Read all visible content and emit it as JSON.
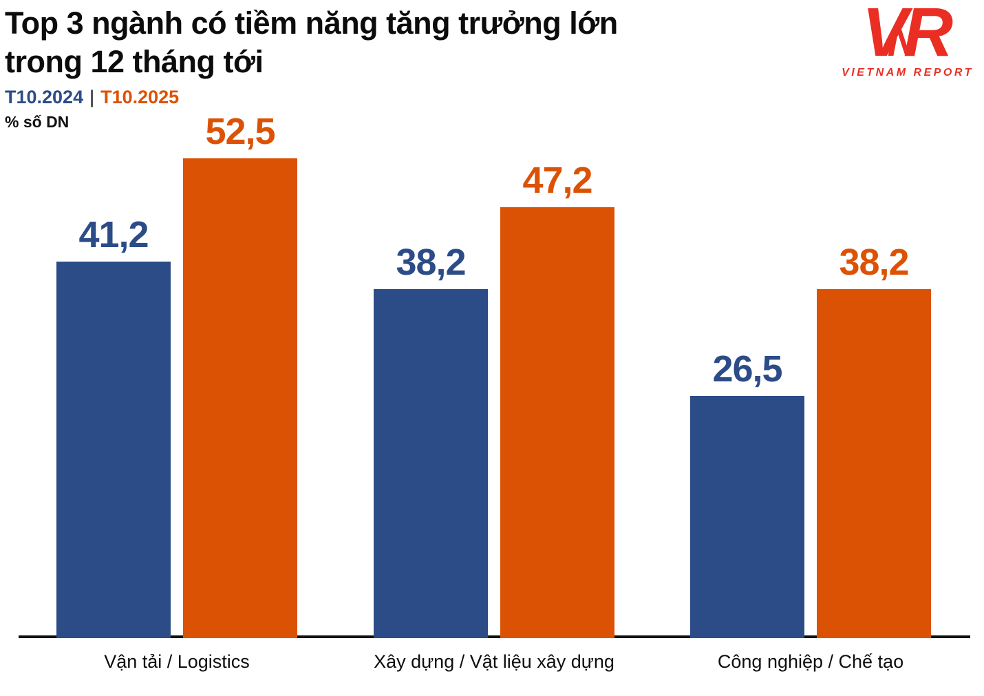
{
  "header": {
    "title_line1": "Top 3 ngành có tiềm năng tăng trưởng lớn",
    "title_line2": "trong 12 tháng tới",
    "legend": {
      "series1": "T10.2024",
      "separator": "|",
      "series2": "T10.2025"
    },
    "unit_label": "% số DN"
  },
  "logo": {
    "letter_v": "V",
    "letter_n": "N",
    "letter_r": "R",
    "subtext": "VIETNAM REPORT",
    "color": "#ea2e24"
  },
  "colors": {
    "series1": "#2c4c88",
    "series2": "#dc5204",
    "axis": "#111111",
    "title": "#0c0c0c",
    "background": "#ffffff"
  },
  "chart_data": {
    "type": "bar",
    "title": "Top 3 ngành có tiềm năng tăng trưởng lớn trong 12 tháng tới",
    "ylabel": "% số DN",
    "categories": [
      "Vận tải / Logistics",
      "Xây dựng / Vật liệu xây dựng",
      "Công nghiệp / Chế tạo"
    ],
    "series": [
      {
        "name": "T10.2024",
        "color": "#2c4c88",
        "values": [
          41.2,
          38.2,
          26.5
        ],
        "value_labels": [
          "41,2",
          "38,2",
          "26,5"
        ]
      },
      {
        "name": "T10.2025",
        "color": "#dc5204",
        "values": [
          52.5,
          47.2,
          38.2
        ],
        "value_labels": [
          "52,5",
          "47,2",
          "38,2"
        ]
      }
    ],
    "ylim": [
      0,
      55
    ],
    "grid": false,
    "legend_position": "top-left",
    "value_decimal_separator": ",",
    "value_labels_shown": true
  }
}
